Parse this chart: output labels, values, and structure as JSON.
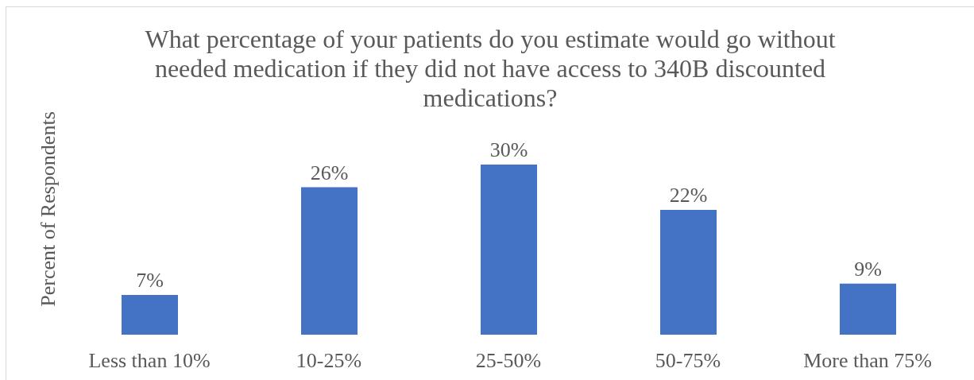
{
  "chart_data": {
    "type": "bar",
    "title": "What percentage of your patients do you estimate would go without needed medication if they did not have access to 340B discounted medications?",
    "ylabel": "Percent of Respondents",
    "categories": [
      "Less than 10%",
      "10-25%",
      "25-50%",
      "50-75%",
      "More than 75%"
    ],
    "values": [
      7,
      26,
      30,
      22,
      9
    ],
    "value_labels": [
      "7%",
      "26%",
      "30%",
      "22%",
      "9%"
    ],
    "color": "#4472c4",
    "tick_labels": "x"
  }
}
